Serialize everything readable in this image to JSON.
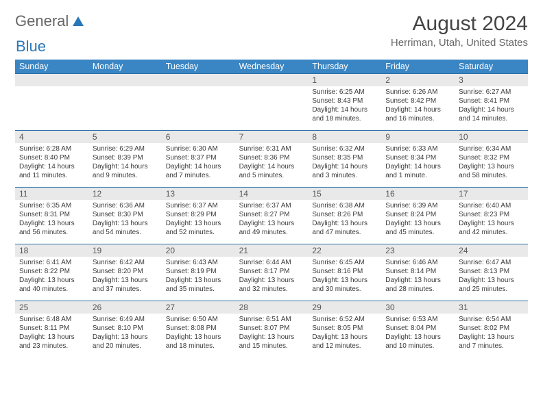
{
  "brand": {
    "part1": "General",
    "part2": "Blue"
  },
  "title": "August 2024",
  "location": "Herriman, Utah, United States",
  "colors": {
    "header_bg": "#3a86c4",
    "header_text": "#ffffff",
    "daynum_bg": "#e9e9e9",
    "week_divider": "#2a6ea8",
    "text": "#3a3a3a",
    "logo_blue": "#2a77b8",
    "logo_gray": "#666666",
    "background": "#ffffff"
  },
  "typography": {
    "month_fontsize": 30,
    "location_fontsize": 15,
    "header_fontsize": 12.5,
    "daynum_fontsize": 12,
    "body_fontsize": 10
  },
  "day_headers": [
    "Sunday",
    "Monday",
    "Tuesday",
    "Wednesday",
    "Thursday",
    "Friday",
    "Saturday"
  ],
  "weeks": [
    {
      "nums": [
        "",
        "",
        "",
        "",
        "1",
        "2",
        "3"
      ],
      "cells": [
        {
          "sunrise": "",
          "sunset": "",
          "daylight1": "",
          "daylight2": ""
        },
        {
          "sunrise": "",
          "sunset": "",
          "daylight1": "",
          "daylight2": ""
        },
        {
          "sunrise": "",
          "sunset": "",
          "daylight1": "",
          "daylight2": ""
        },
        {
          "sunrise": "",
          "sunset": "",
          "daylight1": "",
          "daylight2": ""
        },
        {
          "sunrise": "Sunrise: 6:25 AM",
          "sunset": "Sunset: 8:43 PM",
          "daylight1": "Daylight: 14 hours",
          "daylight2": "and 18 minutes."
        },
        {
          "sunrise": "Sunrise: 6:26 AM",
          "sunset": "Sunset: 8:42 PM",
          "daylight1": "Daylight: 14 hours",
          "daylight2": "and 16 minutes."
        },
        {
          "sunrise": "Sunrise: 6:27 AM",
          "sunset": "Sunset: 8:41 PM",
          "daylight1": "Daylight: 14 hours",
          "daylight2": "and 14 minutes."
        }
      ]
    },
    {
      "nums": [
        "4",
        "5",
        "6",
        "7",
        "8",
        "9",
        "10"
      ],
      "cells": [
        {
          "sunrise": "Sunrise: 6:28 AM",
          "sunset": "Sunset: 8:40 PM",
          "daylight1": "Daylight: 14 hours",
          "daylight2": "and 11 minutes."
        },
        {
          "sunrise": "Sunrise: 6:29 AM",
          "sunset": "Sunset: 8:39 PM",
          "daylight1": "Daylight: 14 hours",
          "daylight2": "and 9 minutes."
        },
        {
          "sunrise": "Sunrise: 6:30 AM",
          "sunset": "Sunset: 8:37 PM",
          "daylight1": "Daylight: 14 hours",
          "daylight2": "and 7 minutes."
        },
        {
          "sunrise": "Sunrise: 6:31 AM",
          "sunset": "Sunset: 8:36 PM",
          "daylight1": "Daylight: 14 hours",
          "daylight2": "and 5 minutes."
        },
        {
          "sunrise": "Sunrise: 6:32 AM",
          "sunset": "Sunset: 8:35 PM",
          "daylight1": "Daylight: 14 hours",
          "daylight2": "and 3 minutes."
        },
        {
          "sunrise": "Sunrise: 6:33 AM",
          "sunset": "Sunset: 8:34 PM",
          "daylight1": "Daylight: 14 hours",
          "daylight2": "and 1 minute."
        },
        {
          "sunrise": "Sunrise: 6:34 AM",
          "sunset": "Sunset: 8:32 PM",
          "daylight1": "Daylight: 13 hours",
          "daylight2": "and 58 minutes."
        }
      ]
    },
    {
      "nums": [
        "11",
        "12",
        "13",
        "14",
        "15",
        "16",
        "17"
      ],
      "cells": [
        {
          "sunrise": "Sunrise: 6:35 AM",
          "sunset": "Sunset: 8:31 PM",
          "daylight1": "Daylight: 13 hours",
          "daylight2": "and 56 minutes."
        },
        {
          "sunrise": "Sunrise: 6:36 AM",
          "sunset": "Sunset: 8:30 PM",
          "daylight1": "Daylight: 13 hours",
          "daylight2": "and 54 minutes."
        },
        {
          "sunrise": "Sunrise: 6:37 AM",
          "sunset": "Sunset: 8:29 PM",
          "daylight1": "Daylight: 13 hours",
          "daylight2": "and 52 minutes."
        },
        {
          "sunrise": "Sunrise: 6:37 AM",
          "sunset": "Sunset: 8:27 PM",
          "daylight1": "Daylight: 13 hours",
          "daylight2": "and 49 minutes."
        },
        {
          "sunrise": "Sunrise: 6:38 AM",
          "sunset": "Sunset: 8:26 PM",
          "daylight1": "Daylight: 13 hours",
          "daylight2": "and 47 minutes."
        },
        {
          "sunrise": "Sunrise: 6:39 AM",
          "sunset": "Sunset: 8:24 PM",
          "daylight1": "Daylight: 13 hours",
          "daylight2": "and 45 minutes."
        },
        {
          "sunrise": "Sunrise: 6:40 AM",
          "sunset": "Sunset: 8:23 PM",
          "daylight1": "Daylight: 13 hours",
          "daylight2": "and 42 minutes."
        }
      ]
    },
    {
      "nums": [
        "18",
        "19",
        "20",
        "21",
        "22",
        "23",
        "24"
      ],
      "cells": [
        {
          "sunrise": "Sunrise: 6:41 AM",
          "sunset": "Sunset: 8:22 PM",
          "daylight1": "Daylight: 13 hours",
          "daylight2": "and 40 minutes."
        },
        {
          "sunrise": "Sunrise: 6:42 AM",
          "sunset": "Sunset: 8:20 PM",
          "daylight1": "Daylight: 13 hours",
          "daylight2": "and 37 minutes."
        },
        {
          "sunrise": "Sunrise: 6:43 AM",
          "sunset": "Sunset: 8:19 PM",
          "daylight1": "Daylight: 13 hours",
          "daylight2": "and 35 minutes."
        },
        {
          "sunrise": "Sunrise: 6:44 AM",
          "sunset": "Sunset: 8:17 PM",
          "daylight1": "Daylight: 13 hours",
          "daylight2": "and 32 minutes."
        },
        {
          "sunrise": "Sunrise: 6:45 AM",
          "sunset": "Sunset: 8:16 PM",
          "daylight1": "Daylight: 13 hours",
          "daylight2": "and 30 minutes."
        },
        {
          "sunrise": "Sunrise: 6:46 AM",
          "sunset": "Sunset: 8:14 PM",
          "daylight1": "Daylight: 13 hours",
          "daylight2": "and 28 minutes."
        },
        {
          "sunrise": "Sunrise: 6:47 AM",
          "sunset": "Sunset: 8:13 PM",
          "daylight1": "Daylight: 13 hours",
          "daylight2": "and 25 minutes."
        }
      ]
    },
    {
      "nums": [
        "25",
        "26",
        "27",
        "28",
        "29",
        "30",
        "31"
      ],
      "cells": [
        {
          "sunrise": "Sunrise: 6:48 AM",
          "sunset": "Sunset: 8:11 PM",
          "daylight1": "Daylight: 13 hours",
          "daylight2": "and 23 minutes."
        },
        {
          "sunrise": "Sunrise: 6:49 AM",
          "sunset": "Sunset: 8:10 PM",
          "daylight1": "Daylight: 13 hours",
          "daylight2": "and 20 minutes."
        },
        {
          "sunrise": "Sunrise: 6:50 AM",
          "sunset": "Sunset: 8:08 PM",
          "daylight1": "Daylight: 13 hours",
          "daylight2": "and 18 minutes."
        },
        {
          "sunrise": "Sunrise: 6:51 AM",
          "sunset": "Sunset: 8:07 PM",
          "daylight1": "Daylight: 13 hours",
          "daylight2": "and 15 minutes."
        },
        {
          "sunrise": "Sunrise: 6:52 AM",
          "sunset": "Sunset: 8:05 PM",
          "daylight1": "Daylight: 13 hours",
          "daylight2": "and 12 minutes."
        },
        {
          "sunrise": "Sunrise: 6:53 AM",
          "sunset": "Sunset: 8:04 PM",
          "daylight1": "Daylight: 13 hours",
          "daylight2": "and 10 minutes."
        },
        {
          "sunrise": "Sunrise: 6:54 AM",
          "sunset": "Sunset: 8:02 PM",
          "daylight1": "Daylight: 13 hours",
          "daylight2": "and 7 minutes."
        }
      ]
    }
  ]
}
